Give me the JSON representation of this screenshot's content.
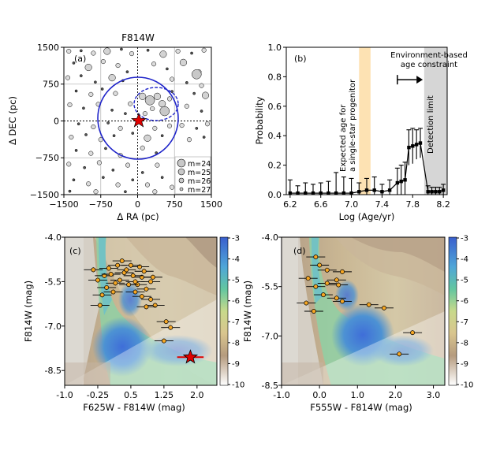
{
  "chart_data": [
    {
      "panel": "(a)",
      "type": "scatter",
      "title": "F814W",
      "xlabel": "Δ RA (pc)",
      "ylabel": "Δ DEC (pc)",
      "xlim": [
        -1500,
        1500
      ],
      "ylim": [
        -1500,
        1500
      ],
      "xticks": [
        "−1500",
        "−750",
        "0",
        "750",
        "1500"
      ],
      "yticks": [
        "1500",
        "750",
        "0",
        "−750",
        "−1500"
      ],
      "legend": [
        "m=24",
        "m=25",
        "m=26",
        "m=27"
      ],
      "legend_position": "bottom-right",
      "gridlines": [
        -750,
        750
      ],
      "circle_radius_pc": 800,
      "source_position": [
        0,
        0
      ],
      "stars": [
        {
          "x": -1400,
          "y": 1420,
          "m": 26
        },
        {
          "x": -1150,
          "y": 1430,
          "m": 27
        },
        {
          "x": -900,
          "y": 1380,
          "m": 26
        },
        {
          "x": -620,
          "y": 1420,
          "m": 25
        },
        {
          "x": -330,
          "y": 1460,
          "m": 27
        },
        {
          "x": -120,
          "y": 1370,
          "m": 26
        },
        {
          "x": 210,
          "y": 1440,
          "m": 27
        },
        {
          "x": 520,
          "y": 1360,
          "m": 25
        },
        {
          "x": 820,
          "y": 1420,
          "m": 26
        },
        {
          "x": 1100,
          "y": 1380,
          "m": 27
        },
        {
          "x": 1350,
          "y": 1440,
          "m": 26
        },
        {
          "x": -1300,
          "y": 1180,
          "m": 27
        },
        {
          "x": -1000,
          "y": 1090,
          "m": 25
        },
        {
          "x": -700,
          "y": 1210,
          "m": 26
        },
        {
          "x": -400,
          "y": 1130,
          "m": 26
        },
        {
          "x": -210,
          "y": 1000,
          "m": 27
        },
        {
          "x": 330,
          "y": 1160,
          "m": 26
        },
        {
          "x": 600,
          "y": 1060,
          "m": 27
        },
        {
          "x": 930,
          "y": 1190,
          "m": 25
        },
        {
          "x": 1250,
          "y": 1000,
          "m": 26
        },
        {
          "x": -1420,
          "y": 880,
          "m": 26
        },
        {
          "x": -1150,
          "y": 920,
          "m": 27
        },
        {
          "x": -860,
          "y": 790,
          "m": 27
        },
        {
          "x": -520,
          "y": 880,
          "m": 25
        },
        {
          "x": -300,
          "y": 820,
          "m": 27
        },
        {
          "x": 700,
          "y": 850,
          "m": 26
        },
        {
          "x": 1000,
          "y": 780,
          "m": 27
        },
        {
          "x": 1300,
          "y": 720,
          "m": 26
        },
        {
          "x": -1250,
          "y": 610,
          "m": 27
        },
        {
          "x": -950,
          "y": 540,
          "m": 26
        },
        {
          "x": -720,
          "y": 650,
          "m": 27
        },
        {
          "x": -450,
          "y": 560,
          "m": 26
        },
        {
          "x": 1150,
          "y": 560,
          "m": 27
        },
        {
          "x": 1380,
          "y": 520,
          "m": 25
        },
        {
          "x": -1380,
          "y": 330,
          "m": 26
        },
        {
          "x": -1100,
          "y": 260,
          "m": 27
        },
        {
          "x": -800,
          "y": 340,
          "m": 26
        },
        {
          "x": -520,
          "y": 220,
          "m": 27
        },
        {
          "x": 1000,
          "y": 300,
          "m": 26
        },
        {
          "x": 1300,
          "y": 200,
          "m": 27
        },
        {
          "x": -1200,
          "y": -60,
          "m": 27
        },
        {
          "x": -900,
          "y": -120,
          "m": 26
        },
        {
          "x": -600,
          "y": -40,
          "m": 27
        },
        {
          "x": 900,
          "y": -90,
          "m": 26
        },
        {
          "x": 1200,
          "y": -150,
          "m": 27
        },
        {
          "x": 1420,
          "y": -60,
          "m": 26
        },
        {
          "x": -1350,
          "y": -330,
          "m": 26
        },
        {
          "x": -1050,
          "y": -280,
          "m": 27
        },
        {
          "x": -750,
          "y": -380,
          "m": 26
        },
        {
          "x": -480,
          "y": -300,
          "m": 27
        },
        {
          "x": 1050,
          "y": -380,
          "m": 26
        },
        {
          "x": 1350,
          "y": -330,
          "m": 27
        },
        {
          "x": -1250,
          "y": -600,
          "m": 27
        },
        {
          "x": -950,
          "y": -660,
          "m": 26
        },
        {
          "x": -650,
          "y": -560,
          "m": 27
        },
        {
          "x": -350,
          "y": -700,
          "m": 26
        },
        {
          "x": 380,
          "y": -650,
          "m": 27
        },
        {
          "x": -1400,
          "y": -880,
          "m": 26
        },
        {
          "x": -1080,
          "y": -950,
          "m": 27
        },
        {
          "x": -780,
          "y": -850,
          "m": 26
        },
        {
          "x": -500,
          "y": -1000,
          "m": 27
        },
        {
          "x": -200,
          "y": -900,
          "m": 26
        },
        {
          "x": 100,
          "y": -1050,
          "m": 27
        },
        {
          "x": 400,
          "y": -900,
          "m": 26
        },
        {
          "x": -1300,
          "y": -1200,
          "m": 27
        },
        {
          "x": -1000,
          "y": -1280,
          "m": 26
        },
        {
          "x": -700,
          "y": -1150,
          "m": 27
        },
        {
          "x": -400,
          "y": -1300,
          "m": 26
        },
        {
          "x": -100,
          "y": -1200,
          "m": 27
        },
        {
          "x": 200,
          "y": -1300,
          "m": 26
        },
        {
          "x": 500,
          "y": -1150,
          "m": 27
        },
        {
          "x": 700,
          "y": -1350,
          "m": 26
        },
        {
          "x": -1380,
          "y": -1430,
          "m": 27
        },
        {
          "x": -850,
          "y": -1440,
          "m": 26
        },
        {
          "x": -250,
          "y": -1440,
          "m": 27
        },
        {
          "x": 350,
          "y": -1440,
          "m": 26
        },
        {
          "x": 100,
          "y": 500,
          "m": 25
        },
        {
          "x": 250,
          "y": 420,
          "m": 24
        },
        {
          "x": 400,
          "y": 500,
          "m": 25
        },
        {
          "x": 500,
          "y": 350,
          "m": 25
        },
        {
          "x": 300,
          "y": 250,
          "m": 26
        },
        {
          "x": 550,
          "y": 200,
          "m": 24
        },
        {
          "x": 150,
          "y": 150,
          "m": 26
        },
        {
          "x": -150,
          "y": 350,
          "m": 26
        },
        {
          "x": -250,
          "y": 150,
          "m": 27
        },
        {
          "x": 650,
          "y": 450,
          "m": 26
        },
        {
          "x": 350,
          "y": -150,
          "m": 26
        },
        {
          "x": 200,
          "y": -350,
          "m": 25
        },
        {
          "x": 500,
          "y": -300,
          "m": 27
        },
        {
          "x": -100,
          "y": -250,
          "m": 27
        },
        {
          "x": 650,
          "y": -100,
          "m": 26
        },
        {
          "x": -350,
          "y": -150,
          "m": 26
        },
        {
          "x": 100,
          "y": -550,
          "m": 26
        },
        {
          "x": 700,
          "y": 600,
          "m": 27
        },
        {
          "x": 1200,
          "y": 950,
          "m": 24
        },
        {
          "x": 1250,
          "y": -950,
          "m": 24
        }
      ]
    },
    {
      "panel": "(b)",
      "type": "bar",
      "xlabel": "Log (Age/yr)",
      "ylabel": "Probability",
      "xlim": [
        6.15,
        8.25
      ],
      "ylim": [
        0,
        1
      ],
      "xticks": [
        "6.2",
        "6.6",
        "7.0",
        "7.4",
        "7.8",
        "8.2"
      ],
      "yticks": [
        "0.0",
        "0.2",
        "0.4",
        "0.6",
        "0.8",
        "1.0"
      ],
      "x": [
        6.2,
        6.3,
        6.4,
        6.5,
        6.6,
        6.7,
        6.8,
        6.9,
        7.0,
        7.1,
        7.2,
        7.3,
        7.4,
        7.5,
        7.6,
        7.65,
        7.7,
        7.75,
        7.8,
        7.85,
        7.9,
        8.0,
        8.05,
        8.1,
        8.15,
        8.2
      ],
      "values": [
        0.01,
        0.01,
        0.01,
        0.01,
        0.01,
        0.01,
        0.01,
        0.01,
        0.01,
        0.02,
        0.03,
        0.03,
        0.02,
        0.03,
        0.08,
        0.09,
        0.1,
        0.32,
        0.33,
        0.34,
        0.35,
        0.02,
        0.02,
        0.02,
        0.02,
        0.03
      ],
      "errors": [
        0.09,
        0.05,
        0.07,
        0.06,
        0.07,
        0.08,
        0.14,
        0.11,
        0.1,
        0.06,
        0.08,
        0.09,
        0.05,
        0.07,
        0.1,
        0.11,
        0.12,
        0.12,
        0.12,
        0.1,
        0.1,
        0.04,
        0.03,
        0.03,
        0.03,
        0.04
      ],
      "shade_expected": [
        7.1,
        7.25
      ],
      "shade_detection": [
        7.95,
        8.25
      ],
      "arrow_from": 7.6,
      "arrow_to": 7.85,
      "arrow_y": 0.78,
      "annotations": {
        "expected_line1": "Expected age for",
        "expected_line2": "a single-star progenitor",
        "env_line1": "Environment-based",
        "env_line2": "age constraint",
        "detection": "Detection limit"
      }
    },
    {
      "panel": "(c)",
      "type": "scatter",
      "xlabel": "F625W - F814W (mag)",
      "ylabel": "F814W (mag)",
      "xlim": [
        -1.0,
        2.45
      ],
      "ylim": [
        -4.0,
        -9.0
      ],
      "xticks": [
        "-1.0",
        "-0.25",
        "0.5",
        "1.25",
        "2.0"
      ],
      "yticks": [
        "-8.5",
        "-7.0",
        "-5.5",
        "-4.0"
      ],
      "colorbar_ticks": [
        "-3",
        "-4",
        "-5",
        "-6",
        "-7",
        "-8",
        "-9",
        "-10"
      ],
      "progenitor": {
        "x": 1.85,
        "y": -8.05,
        "xerr": 0.3
      },
      "points": [
        {
          "x": 1.25,
          "y": -7.5
        },
        {
          "x": 1.4,
          "y": -7.05
        },
        {
          "x": 1.3,
          "y": -6.85
        },
        {
          "x": 1.05,
          "y": -6.3
        },
        {
          "x": 0.85,
          "y": -6.35
        },
        {
          "x": 0.95,
          "y": -6.1
        },
        {
          "x": 0.75,
          "y": -6.0
        },
        {
          "x": 0.6,
          "y": -5.85
        },
        {
          "x": 0.85,
          "y": -5.75
        },
        {
          "x": 0.65,
          "y": -5.6
        },
        {
          "x": 0.95,
          "y": -5.5
        },
        {
          "x": 0.75,
          "y": -5.35
        },
        {
          "x": 0.55,
          "y": -5.3
        },
        {
          "x": 0.8,
          "y": -5.15
        },
        {
          "x": 1.0,
          "y": -5.35
        },
        {
          "x": 0.7,
          "y": -5.0
        },
        {
          "x": 0.35,
          "y": -5.2
        },
        {
          "x": 0.25,
          "y": -5.45
        },
        {
          "x": 0.45,
          "y": -5.6
        },
        {
          "x": 0.15,
          "y": -5.55
        },
        {
          "x": 0.1,
          "y": -5.85
        },
        {
          "x": -0.05,
          "y": -5.7
        },
        {
          "x": -0.2,
          "y": -6.3
        },
        {
          "x": -0.15,
          "y": -5.95
        },
        {
          "x": -0.35,
          "y": -5.1
        },
        {
          "x": -0.1,
          "y": -5.3
        },
        {
          "x": 0.0,
          "y": -5.05
        },
        {
          "x": 0.3,
          "y": -4.8
        },
        {
          "x": 0.5,
          "y": -4.95
        },
        {
          "x": 0.2,
          "y": -4.95
        },
        {
          "x": -0.25,
          "y": -5.45
        },
        {
          "x": 0.05,
          "y": -5.25
        },
        {
          "x": 0.6,
          "y": -5.5
        },
        {
          "x": 0.4,
          "y": -5.1
        }
      ]
    },
    {
      "panel": "(d)",
      "type": "scatter",
      "xlabel": "F555W - F814W (mag)",
      "ylabel": "F814W (mag)",
      "xlim": [
        -1.0,
        3.3
      ],
      "ylim": [
        -4.0,
        -8.5
      ],
      "xticks": [
        "-1.0",
        "0.0",
        "1.0",
        "2.0",
        "3.0"
      ],
      "yticks": [
        "-8.5",
        "-7.0",
        "-5.5",
        "-4.0"
      ],
      "colorbar_ticks": [
        "-3",
        "-4",
        "-5",
        "-6",
        "-7",
        "-8",
        "-9",
        "-10"
      ],
      "points": [
        {
          "x": 2.1,
          "y": -7.55
        },
        {
          "x": 2.45,
          "y": -6.9
        },
        {
          "x": 1.7,
          "y": -6.15
        },
        {
          "x": 1.3,
          "y": -6.05
        },
        {
          "x": 0.6,
          "y": -5.95
        },
        {
          "x": 0.45,
          "y": -5.85
        },
        {
          "x": 0.1,
          "y": -5.75
        },
        {
          "x": -0.15,
          "y": -6.25
        },
        {
          "x": -0.35,
          "y": -6.0
        },
        {
          "x": -0.1,
          "y": -5.5
        },
        {
          "x": 0.2,
          "y": -5.4
        },
        {
          "x": 0.45,
          "y": -5.3
        },
        {
          "x": 0.6,
          "y": -5.05
        },
        {
          "x": 0.2,
          "y": -5.0
        },
        {
          "x": -0.3,
          "y": -5.25
        },
        {
          "x": 0.0,
          "y": -4.85
        },
        {
          "x": -0.1,
          "y": -4.6
        },
        {
          "x": 0.5,
          "y": -5.45
        }
      ]
    }
  ]
}
